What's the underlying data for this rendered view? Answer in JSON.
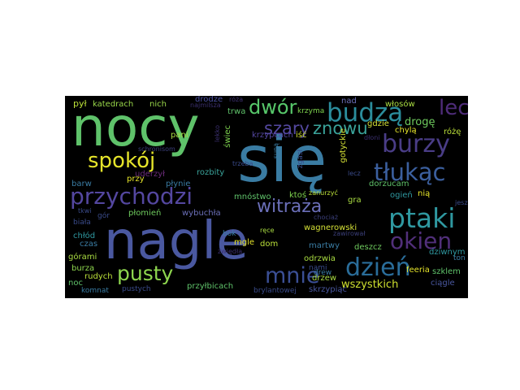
{
  "words": [
    {
      "id": "nagle",
      "text": "nagle",
      "color": "#4a58a0"
    },
    {
      "id": "sie",
      "text": "się",
      "color": "#3a7ca3"
    },
    {
      "id": "nocy",
      "text": "nocy",
      "color": "#5fc26a"
    },
    {
      "id": "przychodzi",
      "text": "przychodzi",
      "color": "#5447a0"
    },
    {
      "id": "budza",
      "text": "budzą",
      "color": "#2b8d9c"
    },
    {
      "id": "burzy",
      "text": "burzy",
      "color": "#4a3d87"
    },
    {
      "id": "tlukac",
      "text": "tłukąc",
      "color": "#3b5f9e"
    },
    {
      "id": "ptaki",
      "text": "ptaki",
      "color": "#2f98a0"
    },
    {
      "id": "okien",
      "text": "okien",
      "color": "#512f7a"
    },
    {
      "id": "dzien",
      "text": "dzień",
      "color": "#2a6d9a"
    },
    {
      "id": "mnie",
      "text": "mnie",
      "color": "#3b4f95"
    },
    {
      "id": "pusty",
      "text": "pusty",
      "color": "#8ed64e"
    },
    {
      "id": "spokoj",
      "text": "spokój",
      "color": "#e5e42a"
    },
    {
      "id": "dwor",
      "text": "dwór",
      "color": "#57c76a"
    },
    {
      "id": "szary",
      "text": "szary",
      "color": "#5448a0"
    },
    {
      "id": "znowu",
      "text": "znowu",
      "color": "#3aa39a"
    },
    {
      "id": "lece",
      "text": "lecę",
      "color": "#4e2c79"
    },
    {
      "id": "witraza",
      "text": "witraża",
      "color": "#6b6fb8"
    },
    {
      "id": "droge",
      "text": "drogę",
      "color": "#6fcb5e"
    },
    {
      "id": "wszystkich",
      "text": "wszystkich",
      "color": "#cfe02f"
    },
    {
      "id": "katedrach",
      "text": "katedrach",
      "color": "#9ad84a"
    },
    {
      "id": "pyl",
      "text": "pył",
      "color": "#bde23a"
    },
    {
      "id": "nich",
      "text": "nich",
      "color": "#9ad84a"
    },
    {
      "id": "najmilsza",
      "text": "najmilsza",
      "color": "#3b2f6e"
    },
    {
      "id": "roza",
      "text": "róża",
      "color": "#3b2f6e"
    },
    {
      "id": "drodze",
      "text": "drodze",
      "color": "#4a4fa0"
    },
    {
      "id": "trwa",
      "text": "trwa",
      "color": "#5fc26a"
    },
    {
      "id": "krzyma",
      "text": "krzyma",
      "color": "#7ed34e"
    },
    {
      "id": "nad",
      "text": "nad",
      "color": "#6b6fb8"
    },
    {
      "id": "wlosow",
      "text": "włosów",
      "color": "#aadd42"
    },
    {
      "id": "szklem",
      "text": "szklem",
      "color": "#5fc26a"
    },
    {
      "id": "ciagle",
      "text": "ciągle",
      "color": "#4a58a0"
    },
    {
      "id": "feeria",
      "text": "feeria",
      "color": "#e5e42a"
    },
    {
      "id": "ton",
      "text": "ton",
      "color": "#3a7ca3"
    },
    {
      "id": "dziwnym",
      "text": "dziwnym",
      "color": "#2f98a0"
    },
    {
      "id": "chyla",
      "text": "chylą",
      "color": "#e5e42a"
    },
    {
      "id": "roze",
      "text": "różę",
      "color": "#bde23a"
    },
    {
      "id": "dloni",
      "text": "dłoni",
      "color": "#3b2f6e"
    },
    {
      "id": "gdzie",
      "text": "gdzie",
      "color": "#d4e036"
    },
    {
      "id": "dorzucam",
      "text": "dorzucam",
      "color": "#5fc26a"
    },
    {
      "id": "lecz",
      "text": "lecz",
      "color": "#3a4b8a"
    },
    {
      "id": "ogien",
      "text": "ogień",
      "color": "#2f98a0"
    },
    {
      "id": "nia",
      "text": "nią",
      "color": "#e5e42a"
    },
    {
      "id": "jeszcze",
      "text": "jeszcze",
      "color": "#3a4b8a"
    },
    {
      "id": "pani",
      "text": "pani",
      "color": "#aadd42"
    },
    {
      "id": "schronisom",
      "text": "schronisom",
      "color": "#3b3f7a"
    },
    {
      "id": "przy",
      "text": "przy",
      "color": "#e5e42a"
    },
    {
      "id": "uderzyl",
      "text": "uderzył",
      "color": "#6b2c7a"
    },
    {
      "id": "plynie",
      "text": "płynie",
      "color": "#3a7ca3"
    },
    {
      "id": "barw",
      "text": "barw",
      "color": "#3a7ca3"
    },
    {
      "id": "tkwi",
      "text": "tkwi",
      "color": "#3a4b8a"
    },
    {
      "id": "gor",
      "text": "gór",
      "color": "#3a4b8a"
    },
    {
      "id": "biala",
      "text": "biała",
      "color": "#3a4b8a"
    },
    {
      "id": "plomien",
      "text": "płomień",
      "color": "#6fcb5e"
    },
    {
      "id": "wybuchla",
      "text": "wybuchła",
      "color": "#6b6fb8"
    },
    {
      "id": "chlod",
      "text": "chłód",
      "color": "#2f98a0"
    },
    {
      "id": "czas",
      "text": "czas",
      "color": "#3a7ca3"
    },
    {
      "id": "gorami",
      "text": "górami",
      "color": "#aadd42"
    },
    {
      "id": "burza",
      "text": "burza",
      "color": "#8ed64e"
    },
    {
      "id": "rudych",
      "text": "rudych",
      "color": "#bde23a"
    },
    {
      "id": "noc",
      "text": "noc",
      "color": "#5fc26a"
    },
    {
      "id": "komnat",
      "text": "komnat",
      "color": "#3a7ca3"
    },
    {
      "id": "pustych",
      "text": "pustych",
      "color": "#3a4b8a"
    },
    {
      "id": "przylbicach",
      "text": "przyłbicach",
      "color": "#5fc26a"
    },
    {
      "id": "brylantowej",
      "text": "brylantowej",
      "color": "#3a4b8a"
    },
    {
      "id": "skrzypiac",
      "text": "skrzypiąc",
      "color": "#4a58a0"
    },
    {
      "id": "odrzwia",
      "text": "odrzwia",
      "color": "#aadd42"
    },
    {
      "id": "nami",
      "text": "nami",
      "color": "#3a4b8a"
    },
    {
      "id": "martwy",
      "text": "martwy",
      "color": "#3a7ca3"
    },
    {
      "id": "deszcz",
      "text": "deszcz",
      "color": "#6fcb5e"
    },
    {
      "id": "drzew",
      "text": "drzew",
      "color": "#aadd42"
    },
    {
      "id": "drew",
      "text": "drew",
      "color": "#3a7ca3"
    },
    {
      "id": "wagnerowski",
      "text": "wagnerowski",
      "color": "#d4e036"
    },
    {
      "id": "zawirowal",
      "text": "zawirował",
      "color": "#3b3f7a"
    },
    {
      "id": "gra",
      "text": "gra",
      "color": "#aadd42"
    },
    {
      "id": "chociaz",
      "text": "chociaż",
      "color": "#3b3f7a"
    },
    {
      "id": "zanurzyc",
      "text": "zanurzyć",
      "color": "#bde23a"
    },
    {
      "id": "ktos",
      "text": "ktoś",
      "color": "#7ed34e"
    },
    {
      "id": "mnostwo",
      "text": "mnóstwo",
      "color": "#5fc26a"
    },
    {
      "id": "bok",
      "text": "bok",
      "color": "#3a7ca3"
    },
    {
      "id": "mgle",
      "text": "mgle",
      "color": "#e5e42a"
    },
    {
      "id": "rece",
      "text": "ręce",
      "color": "#aadd42"
    },
    {
      "id": "dom",
      "text": "dom",
      "color": "#bde23a"
    },
    {
      "id": "zwiedla",
      "text": "zwiędła",
      "color": "#3b2f6e"
    },
    {
      "id": "rozbity",
      "text": "rozbity",
      "color": "#3aa39a"
    },
    {
      "id": "trzeba",
      "text": "trzeba",
      "color": "#3a4b8a"
    },
    {
      "id": "swiec",
      "text": "świec",
      "color": "#7ed34e"
    },
    {
      "id": "lekko",
      "text": "lekko",
      "color": "#3b2f6e"
    },
    {
      "id": "krzypcach",
      "text": "krzypcach",
      "color": "#5447a0"
    },
    {
      "id": "iść",
      "text": "iść",
      "color": "#cfe02f"
    },
    {
      "id": "suna",
      "text": "suną",
      "color": "#3a7ca3"
    },
    {
      "id": "zgasl",
      "text": "zgasł",
      "color": "#3a4b8a"
    },
    {
      "id": "gotyckie",
      "text": "gotyckie",
      "color": "#d4e036"
    }
  ]
}
